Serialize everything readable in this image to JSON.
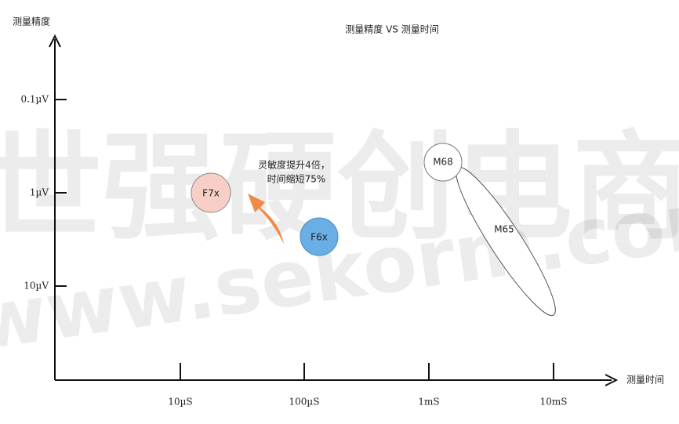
{
  "title": "测量精度 VS 测量时间",
  "y_axis": {
    "label": "测量精度",
    "ticks": [
      "0.1µV",
      "1µV",
      "10µV"
    ]
  },
  "x_axis": {
    "label": "测量时间",
    "ticks": [
      "10µS",
      "100µS",
      "1mS",
      "10mS"
    ]
  },
  "nodes": [
    {
      "label": "F7x"
    },
    {
      "label": "F6x"
    },
    {
      "label": "M68"
    },
    {
      "label": "M65"
    }
  ],
  "annotation": [
    "灵敏度提升4倍，",
    "时间缩短75%"
  ],
  "watermark": [
    "世强硬创电商",
    "www.sekorm.com"
  ]
}
